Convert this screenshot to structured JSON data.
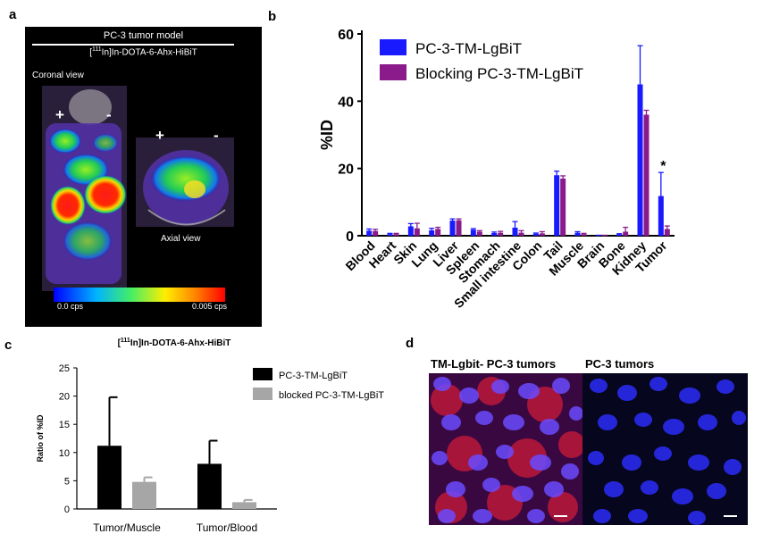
{
  "panels": {
    "a": {
      "letter": "a",
      "title": "PC-3 tumor model",
      "tracer_sup": "111",
      "tracer_pre": "[",
      "tracer_post": "In]In-DOTA-6-Ahx-HiBiT",
      "coronal_label": "Coronal view",
      "axial_label": "Axial view",
      "plus": "+",
      "minus": "-",
      "scale_min": "0.0 cps",
      "scale_max": "0.005 cps"
    },
    "b": {
      "letter": "b"
    },
    "c": {
      "letter": "c"
    },
    "d": {
      "letter": "d",
      "left_label": "TM-Lgbit- PC-3 tumors",
      "right_label": "PC-3 tumors"
    }
  },
  "colors": {
    "blue": "#1a1aff",
    "purple": "#8b1a8b",
    "black_bar": "#000000",
    "grey_bar": "#a6a6a6"
  },
  "chart_data": [
    {
      "id": "b",
      "type": "bar",
      "title": "",
      "ylabel": "%ID",
      "xlabel": "",
      "ylim": [
        0,
        60
      ],
      "yticks": [
        "0",
        "20",
        "40",
        "60"
      ],
      "categories": [
        "Blood",
        "Heart",
        "Skin",
        "Lung",
        "Liver",
        "Spleen",
        "Stomach",
        "Small intestine",
        "Colon",
        "Tail",
        "Muscle",
        "Brain",
        "Bone",
        "Kidney",
        "Tumor"
      ],
      "series": [
        {
          "name": "PC-3-TM-LgBiT",
          "color": "#1a1aff",
          "values": [
            1.5,
            0.5,
            2.8,
            1.6,
            4.5,
            1.8,
            0.8,
            2.4,
            0.6,
            18.0,
            0.9,
            0.1,
            0.4,
            45.0,
            11.8
          ],
          "errors": [
            0.5,
            0.2,
            0.8,
            0.6,
            0.5,
            0.3,
            0.3,
            1.8,
            0.2,
            1.2,
            0.3,
            0.05,
            0.2,
            11.5,
            7.0
          ]
        },
        {
          "name": "Blocking PC-3-TM-LgBiT",
          "color": "#8b1a8b",
          "values": [
            1.4,
            0.5,
            2.2,
            2.0,
            4.6,
            1.2,
            0.9,
            0.9,
            0.7,
            17.0,
            0.5,
            0.1,
            1.2,
            36.0,
            2.0
          ],
          "errors": [
            0.5,
            0.2,
            1.5,
            0.5,
            0.4,
            0.3,
            0.4,
            0.6,
            0.5,
            0.8,
            0.2,
            0.05,
            1.3,
            1.3,
            0.9
          ]
        }
      ],
      "annotations": [
        {
          "category": "Tumor",
          "text": "*"
        }
      ]
    },
    {
      "id": "c",
      "type": "bar",
      "title_sup": "111",
      "title_pre": "[",
      "title_post": "In]In-DOTA-6-Ahx-HiBiT",
      "ylabel": "Ratio of %ID",
      "xlabel": "",
      "ylim": [
        0,
        25
      ],
      "yticks": [
        "0",
        "5",
        "10",
        "15",
        "20",
        "25"
      ],
      "categories": [
        "Tumor/Muscle",
        "Tumor/Blood"
      ],
      "series": [
        {
          "name": "PC-3-TM-LgBiT",
          "color": "#000000",
          "values": [
            11.2,
            8.0
          ],
          "errors": [
            8.6,
            4.1
          ]
        },
        {
          "name": "blocked PC-3-TM-LgBiT",
          "color": "#a6a6a6",
          "values": [
            4.8,
            1.2
          ],
          "errors": [
            0.8,
            0.4
          ]
        }
      ]
    }
  ]
}
